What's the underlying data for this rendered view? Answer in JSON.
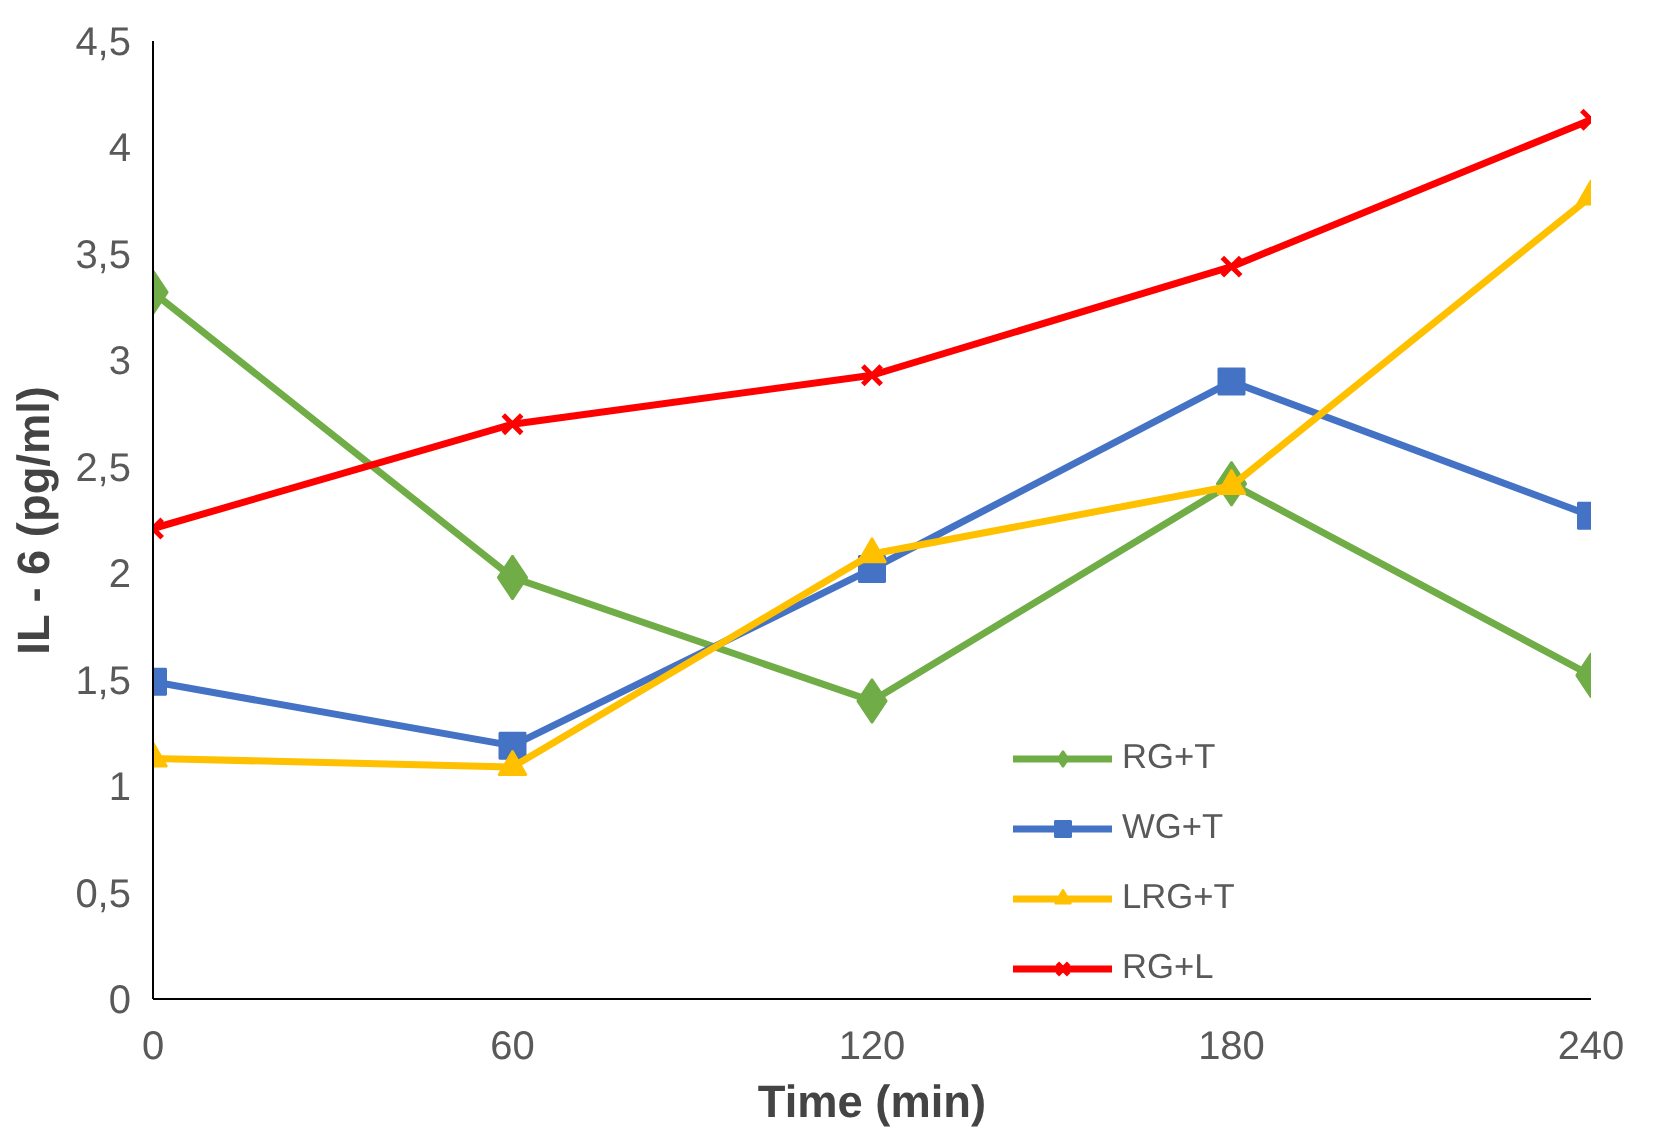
{
  "chart_data": {
    "type": "line",
    "xlabel": "Time (min)",
    "ylabel": "IL - 6 (pg/ml)",
    "x": [
      0,
      60,
      120,
      180,
      240
    ],
    "series": [
      {
        "name": "RG+T",
        "color": "#70ad47",
        "marker": "diamond",
        "values": [
          3.32,
          1.98,
          1.4,
          2.42,
          1.52
        ]
      },
      {
        "name": "WG+T",
        "color": "#4472c4",
        "marker": "square",
        "values": [
          1.49,
          1.19,
          2.02,
          2.9,
          2.27
        ]
      },
      {
        "name": "LRG+T",
        "color": "#ffc000",
        "marker": "triangle",
        "values": [
          1.13,
          1.09,
          2.09,
          2.41,
          3.77
        ]
      },
      {
        "name": "RG+L",
        "color": "#ff0000",
        "marker": "cross",
        "values": [
          2.21,
          2.7,
          2.93,
          3.44,
          4.13
        ]
      }
    ],
    "xlim": [
      0,
      240
    ],
    "xticks": [
      0,
      60,
      120,
      180,
      240
    ],
    "ylim": [
      0,
      4.5
    ],
    "yticks": [
      0,
      {
        "value": 0.5,
        "label": "0,5"
      },
      1,
      {
        "value": 1.5,
        "label": "1,5"
      },
      2,
      {
        "value": 2.5,
        "label": "2,5"
      },
      3,
      {
        "value": 3.5,
        "label": "3,5"
      },
      4,
      {
        "value": 4.5,
        "label": "4,5"
      }
    ],
    "grid": false,
    "legend": "bottom right",
    "line_style": "solid"
  }
}
